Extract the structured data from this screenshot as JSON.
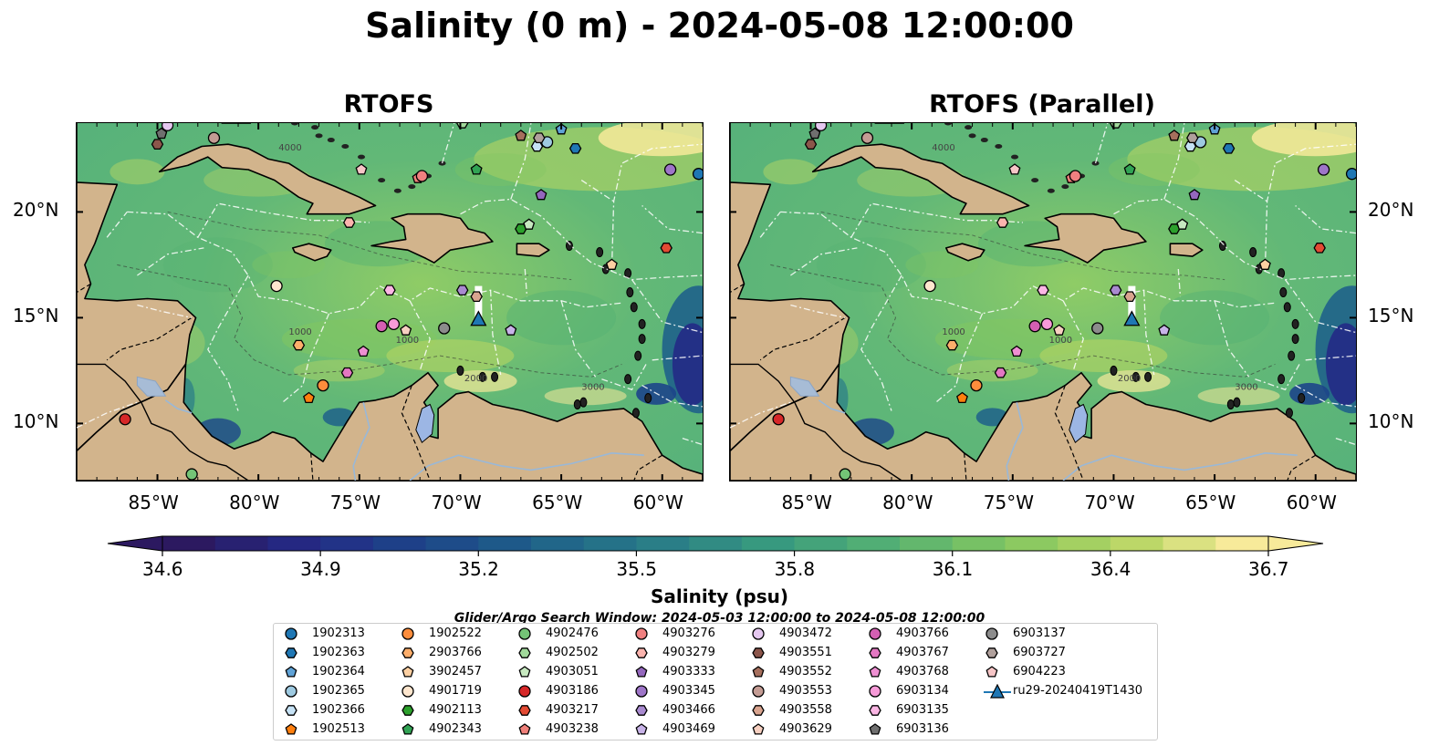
{
  "title": "Salinity (0 m) - 2024-05-08 12:00:00",
  "panels": [
    {
      "title": "RTOFS"
    },
    {
      "title": "RTOFS (Parallel)"
    }
  ],
  "axes": {
    "lon_ticks": [
      "85°W",
      "80°W",
      "75°W",
      "70°W",
      "65°W",
      "60°W"
    ],
    "lat_ticks": [
      "20°N",
      "15°N",
      "10°N"
    ],
    "lon_range": [
      -89,
      -58
    ],
    "lat_range": [
      7.3,
      24.2
    ]
  },
  "colorbar": {
    "label": "Salinity (psu)",
    "ticks": [
      "34.6",
      "34.9",
      "35.2",
      "35.5",
      "35.8",
      "36.1",
      "36.4",
      "36.7"
    ],
    "range": [
      34.6,
      36.7
    ],
    "extend": "both",
    "colormap": [
      "#2c1960",
      "#242a86",
      "#1d4589",
      "#1f6289",
      "#297c87",
      "#389a7f",
      "#55b173",
      "#82c660",
      "#b6d563",
      "#f7ea9a"
    ]
  },
  "search_window": "Glider/Argo Search Window: 2024-05-03 12:00:00 to 2024-05-08 12:00:00",
  "colors": {
    "land": "#d2b48c",
    "ocean_deep": "#2a1a5e",
    "rivers": "#99b8d8",
    "boundaries": "#ffffff"
  },
  "contour_labels": [
    "1000",
    "1000",
    "2000",
    "3000",
    "4000"
  ],
  "floats": [
    {
      "id": "1902313",
      "lon": -58.2,
      "lat": 21.8,
      "marker": "circle",
      "color": "#1f77b4"
    },
    {
      "id": "1902363",
      "lon": -64.3,
      "lat": 23.0,
      "marker": "hexagon",
      "color": "#1f77b4"
    },
    {
      "id": "1902364",
      "lon": -65.0,
      "lat": 23.9,
      "marker": "pentagon",
      "color": "#5fa2d6"
    },
    {
      "id": "1902365",
      "lon": -65.7,
      "lat": 23.3,
      "marker": "circle",
      "color": "#9ecae1"
    },
    {
      "id": "1902366",
      "lon": -66.2,
      "lat": 23.1,
      "marker": "hexagon",
      "color": "#c6e2f5"
    },
    {
      "id": "1902513",
      "lon": -77.5,
      "lat": 11.2,
      "marker": "pentagon",
      "color": "#ff7f0e"
    },
    {
      "id": "1902522",
      "lon": -76.8,
      "lat": 11.8,
      "marker": "circle",
      "color": "#fd8d3c"
    },
    {
      "id": "2903766",
      "lon": -78.0,
      "lat": 13.7,
      "marker": "hexagon",
      "color": "#fdae6b"
    },
    {
      "id": "3902457",
      "lon": -62.5,
      "lat": 17.5,
      "marker": "pentagon",
      "color": "#fdd0a2"
    },
    {
      "id": "4901719",
      "lon": -79.1,
      "lat": 16.5,
      "marker": "circle",
      "color": "#fee6ce"
    },
    {
      "id": "4902113",
      "lon": -67.0,
      "lat": 19.2,
      "marker": "hexagon",
      "color": "#2ca02c"
    },
    {
      "id": "4902343",
      "lon": -69.2,
      "lat": 22.0,
      "marker": "pentagon",
      "color": "#31a354"
    },
    {
      "id": "4902476",
      "lon": -83.3,
      "lat": 7.6,
      "marker": "circle",
      "color": "#74c476"
    },
    {
      "id": "4902502",
      "lon": -69.9,
      "lat": 24.2,
      "marker": "hexagon",
      "color": "#a1d99b"
    },
    {
      "id": "4903051",
      "lon": -66.6,
      "lat": 19.4,
      "marker": "pentagon",
      "color": "#c7e9c0"
    },
    {
      "id": "4903186",
      "lon": -86.6,
      "lat": 10.2,
      "marker": "circle",
      "color": "#d62728"
    },
    {
      "id": "4903217",
      "lon": -59.8,
      "lat": 18.3,
      "marker": "hexagon",
      "color": "#e34a33"
    },
    {
      "id": "4903238",
      "lon": -72.1,
      "lat": 21.6,
      "marker": "pentagon",
      "color": "#f0807a"
    },
    {
      "id": "4903276",
      "lon": -71.9,
      "lat": 21.7,
      "marker": "circle",
      "color": "#f08080"
    },
    {
      "id": "4903279",
      "lon": -75.5,
      "lat": 19.5,
      "marker": "hexagon",
      "color": "#fbb4ae"
    },
    {
      "id": "4903333",
      "lon": -66.0,
      "lat": 20.8,
      "marker": "pentagon",
      "color": "#9467bd"
    },
    {
      "id": "4903345",
      "lon": -59.6,
      "lat": 22.0,
      "marker": "circle",
      "color": "#9e75c8"
    },
    {
      "id": "4903466",
      "lon": -69.9,
      "lat": 16.3,
      "marker": "hexagon",
      "color": "#a98ad0"
    },
    {
      "id": "4903469",
      "lon": -67.5,
      "lat": 14.4,
      "marker": "pentagon",
      "color": "#c8b3e8"
    },
    {
      "id": "4903472",
      "lon": -84.5,
      "lat": 24.1,
      "marker": "circle",
      "color": "#e5c8f0"
    },
    {
      "id": "4903551",
      "lon": -85.0,
      "lat": 23.2,
      "marker": "hexagon",
      "color": "#8c564b"
    },
    {
      "id": "4903552",
      "lon": -67.0,
      "lat": 23.6,
      "marker": "pentagon",
      "color": "#a66f5d"
    },
    {
      "id": "4903553",
      "lon": -82.2,
      "lat": 23.5,
      "marker": "circle",
      "color": "#c49c94"
    },
    {
      "id": "4903558",
      "lon": -69.2,
      "lat": 16.0,
      "marker": "hexagon",
      "color": "#d9a48f"
    },
    {
      "id": "4903629",
      "lon": -72.7,
      "lat": 14.4,
      "marker": "pentagon",
      "color": "#f7d0c1"
    },
    {
      "id": "4903766",
      "lon": -73.9,
      "lat": 14.6,
      "marker": "circle",
      "color": "#d45fb3"
    },
    {
      "id": "4903767",
      "lon": -75.6,
      "lat": 12.4,
      "marker": "hexagon",
      "color": "#e377c2"
    },
    {
      "id": "4903768",
      "lon": -74.8,
      "lat": 13.4,
      "marker": "pentagon",
      "color": "#ee8fd2"
    },
    {
      "id": "6903134",
      "lon": -73.3,
      "lat": 14.7,
      "marker": "circle",
      "color": "#f79ad8"
    },
    {
      "id": "6903135",
      "lon": -73.5,
      "lat": 16.3,
      "marker": "hexagon",
      "color": "#fbb6e4"
    },
    {
      "id": "6903136",
      "lon": -84.8,
      "lat": 23.7,
      "marker": "pentagon",
      "color": "#6f6f6f"
    },
    {
      "id": "6903137",
      "lon": -70.8,
      "lat": 14.5,
      "marker": "circle",
      "color": "#8c8c8c"
    },
    {
      "id": "6903727",
      "lon": -66.1,
      "lat": 23.5,
      "marker": "hexagon",
      "color": "#b0a09c"
    },
    {
      "id": "6904223",
      "lon": -74.9,
      "lat": 22.0,
      "marker": "pentagon",
      "color": "#f7c6c7"
    }
  ],
  "glider": {
    "id": "ru29-20240419T1430",
    "lon": -69.1,
    "lat": 14.9,
    "marker": "triangle",
    "color": "#1f77b4"
  }
}
